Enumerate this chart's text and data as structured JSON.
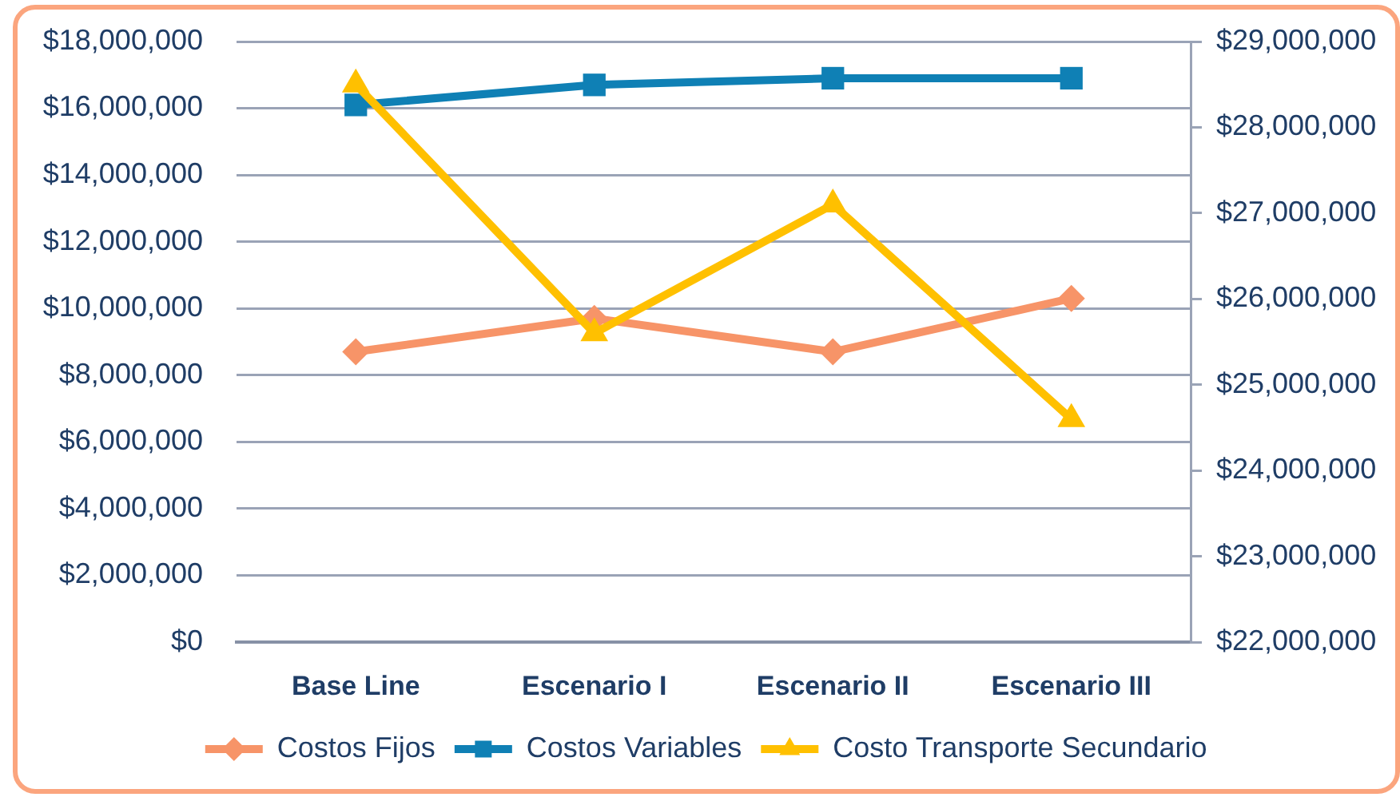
{
  "chart_data": {
    "type": "line",
    "categories": [
      "Base Line",
      "Escenario I",
      "Escenario II",
      "Escenario III"
    ],
    "series": [
      {
        "name": "Costos Fijos",
        "color": "#f79468",
        "marker": "diamond",
        "values": [
          8700000,
          9700000,
          8700000,
          10300000
        ]
      },
      {
        "name": "Costos Variables",
        "color": "#0f80b5",
        "marker": "square",
        "values": [
          16100000,
          16700000,
          16900000,
          16900000
        ]
      },
      {
        "name": "Costo Transporte Secundario",
        "color": "#ffc000",
        "marker": "triangle",
        "axis": "y2",
        "values": [
          28500000,
          25600000,
          27100000,
          24600000
        ]
      }
    ],
    "ylim": [
      0,
      18000000
    ],
    "yticks": [
      {
        "value": 0,
        "label": "$0"
      },
      {
        "value": 2000000,
        "label": "$2,000,000"
      },
      {
        "value": 4000000,
        "label": "$4,000,000"
      },
      {
        "value": 6000000,
        "label": "$6,000,000"
      },
      {
        "value": 8000000,
        "label": "$8,000,000"
      },
      {
        "value": 10000000,
        "label": "$10,000,000"
      },
      {
        "value": 12000000,
        "label": "$12,000,000"
      },
      {
        "value": 14000000,
        "label": "$14,000,000"
      },
      {
        "value": 16000000,
        "label": "$16,000,000"
      },
      {
        "value": 18000000,
        "label": "$18,000,000"
      }
    ],
    "y2lim": [
      22000000,
      29000000
    ],
    "y2ticks": [
      {
        "value": 22000000,
        "label": "$22,000,000"
      },
      {
        "value": 23000000,
        "label": "$23,000,000"
      },
      {
        "value": 24000000,
        "label": "$24,000,000"
      },
      {
        "value": 25000000,
        "label": "$25,000,000"
      },
      {
        "value": 26000000,
        "label": "$26,000,000"
      },
      {
        "value": 27000000,
        "label": "$27,000,000"
      },
      {
        "value": 28000000,
        "label": "$28,000,000"
      },
      {
        "value": 29000000,
        "label": "$29,000,000"
      }
    ],
    "grid": "y",
    "legend": "bottom"
  }
}
